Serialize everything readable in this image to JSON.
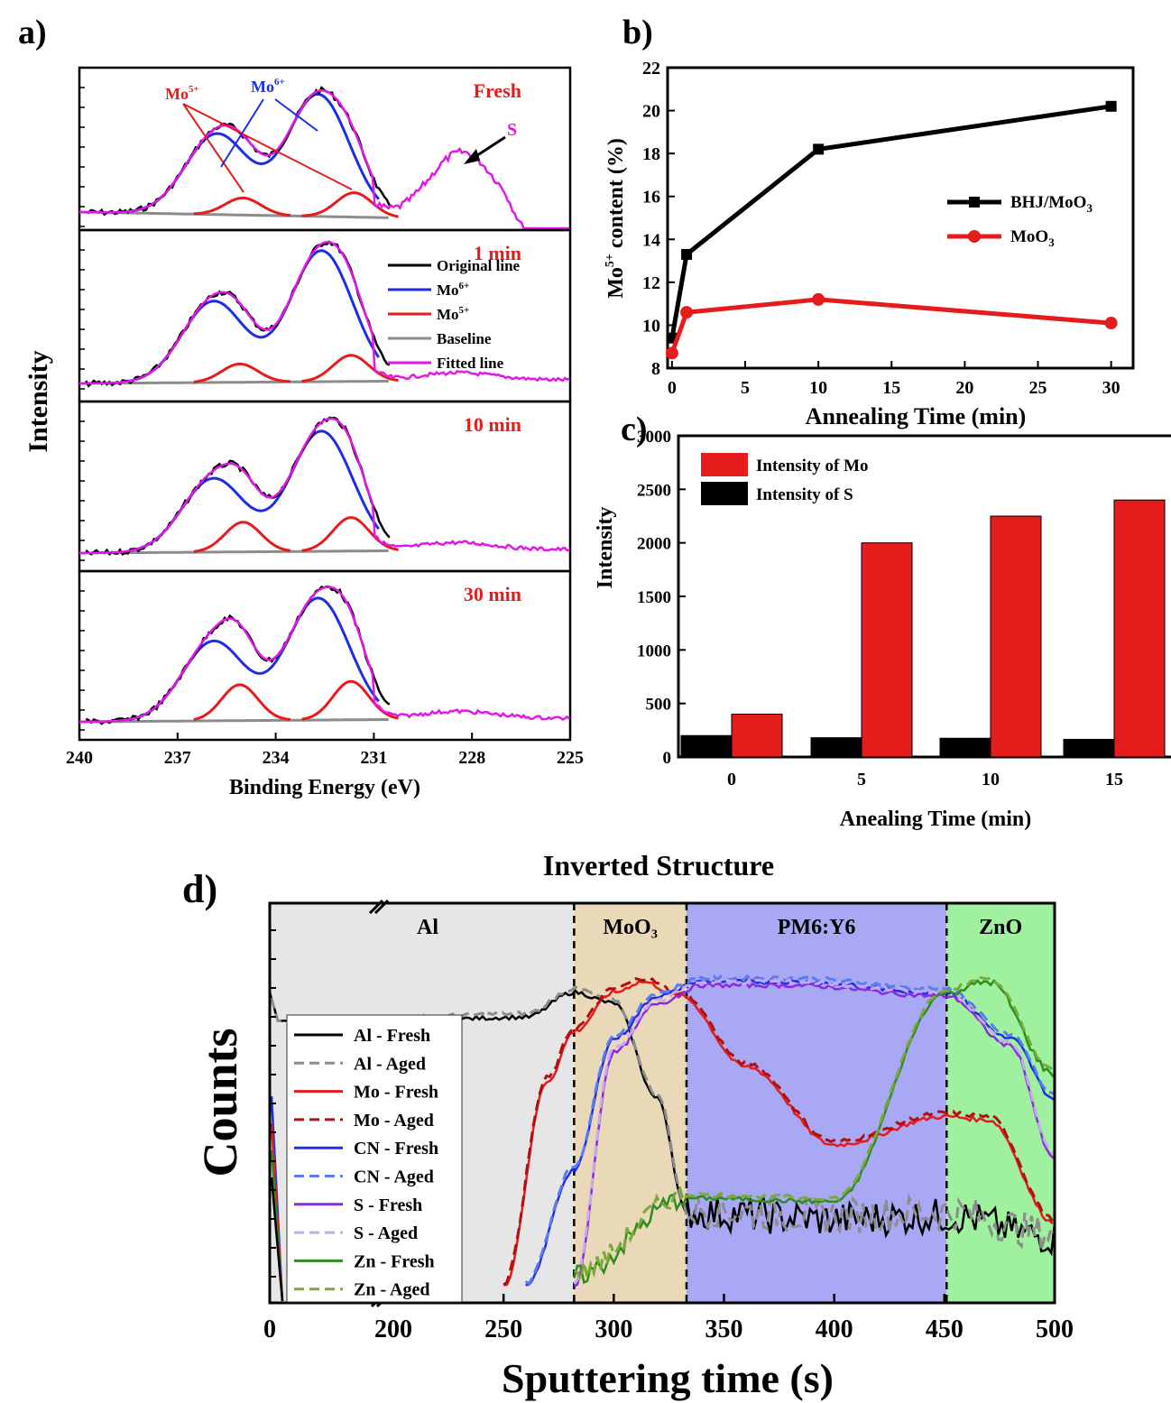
{
  "colors": {
    "black": "#000000",
    "red": "#e61b1b",
    "blue": "#1d2ee6",
    "gray": "#8c8c8c",
    "magenta": "#e317e8",
    "purple": "#8a2be2",
    "green": "#2e8b1f",
    "al_bg": "#e6e6e6",
    "moo3_bg": "#ead9b8",
    "pm6_bg": "#a8a8f4",
    "zno_bg": "#9ff09f"
  },
  "panel_a": {
    "label": "a)",
    "ylabel": "Intensity",
    "xlabel": "Binding Energy (eV)",
    "xticks": [
      "240",
      "237",
      "234",
      "231",
      "228",
      "225"
    ],
    "subpanels": [
      "Fresh",
      "1 min",
      "10 min",
      "30 min"
    ],
    "annotations": {
      "mo5": "Mo",
      "mo5_sup": "5+",
      "mo6": "Mo",
      "mo6_sup": "6+",
      "s": "S"
    },
    "legend": [
      {
        "label": "Original line",
        "color": "#000000"
      },
      {
        "label": "Mo",
        "sup": "6+",
        "color": "#1d2ee6"
      },
      {
        "label": "Mo",
        "sup": "5+",
        "color": "#e61b1b"
      },
      {
        "label": "Baseline",
        "color": "#8c8c8c"
      },
      {
        "label": "Fitted line",
        "color": "#e317e8"
      }
    ]
  },
  "panel_b": {
    "label": "b)",
    "ylabel_pre": "Mo",
    "ylabel_sup": "5+",
    "ylabel_post": " content (%)",
    "xlabel": "Annealing Time (min)",
    "xticks": [
      "0",
      "5",
      "10",
      "15",
      "20",
      "25",
      "30"
    ],
    "yticks": [
      "8",
      "10",
      "12",
      "14",
      "16",
      "18",
      "20",
      "22"
    ],
    "legend": [
      {
        "label": "BHJ/MoO",
        "sub": "3",
        "color": "#000000"
      },
      {
        "label": "MoO",
        "sub": "3",
        "color": "#e61b1b"
      }
    ]
  },
  "panel_c": {
    "label": "c)",
    "ylabel": "Intensity",
    "xlabel": "Anealing Time (min)",
    "xticks": [
      "0",
      "5",
      "10",
      "15"
    ],
    "yticks": [
      "0",
      "500",
      "1000",
      "1500",
      "2000",
      "2500",
      "3000"
    ],
    "legend": [
      {
        "label": "Intensity of Mo",
        "color": "#e61b1b"
      },
      {
        "label": "Intensity of S",
        "color": "#000000"
      }
    ]
  },
  "panel_d": {
    "label": "d)",
    "title": "Inverted Structure",
    "ylabel": "Counts",
    "xlabel": "Sputtering time (s)",
    "xticks": [
      "0",
      "200",
      "250",
      "300",
      "350",
      "400",
      "450",
      "500"
    ],
    "regions": [
      "Al",
      "MoO₃",
      "PM6:Y6",
      "ZnO"
    ],
    "legend": [
      {
        "label": "Al - Fresh",
        "color": "#000000",
        "dash": false
      },
      {
        "label": "Al - Aged",
        "color": "#8c8c8c",
        "dash": true
      },
      {
        "label": "Mo - Fresh",
        "color": "#e61b1b",
        "dash": false
      },
      {
        "label": "Mo - Aged",
        "color": "#b01010",
        "dash": true
      },
      {
        "label": "CN - Fresh",
        "color": "#1d2ee6",
        "dash": false
      },
      {
        "label": "CN - Aged",
        "color": "#5b7bf0",
        "dash": true
      },
      {
        "label": "S - Fresh",
        "color": "#8a2be2",
        "dash": false
      },
      {
        "label": "S - Aged",
        "color": "#c8a8ee",
        "dash": true
      },
      {
        "label": "Zn - Fresh",
        "color": "#2e8b1f",
        "dash": false
      },
      {
        "label": "Zn - Aged",
        "color": "#7aa83a",
        "dash": true
      }
    ]
  },
  "chart_data": [
    {
      "panel": "a",
      "type": "line",
      "xlabel": "Binding Energy (eV)",
      "ylabel": "Intensity",
      "xlim": [
        240,
        225
      ],
      "note_series": [
        "Original line",
        "Mo6+",
        "Mo5+",
        "Baseline",
        "Fitted line"
      ],
      "peaks": {
        "Fresh": {
          "mo6": [
            235.8,
            232.7
          ],
          "mo5": [
            235.0,
            231.6
          ],
          "s": 228.3
        },
        "1 min": {
          "mo6": [
            235.9,
            232.6
          ],
          "mo5": [
            235.1,
            231.7
          ]
        },
        "10 min": {
          "mo6": [
            235.9,
            232.6
          ],
          "mo5": [
            235.0,
            231.7
          ]
        },
        "30 min": {
          "mo6": [
            235.9,
            232.7
          ],
          "mo5": [
            235.1,
            231.7
          ]
        }
      }
    },
    {
      "panel": "b",
      "type": "line",
      "xlabel": "Annealing Time (min)",
      "xlim": [
        -0.3,
        31.5
      ],
      "ylim": [
        8,
        22
      ],
      "series": [
        {
          "name": "BHJ/MoO3",
          "x": [
            0,
            1,
            10,
            30
          ],
          "y": [
            9.4,
            13.3,
            18.2,
            20.2
          ]
        },
        {
          "name": "MoO3",
          "x": [
            0,
            1,
            10,
            30
          ],
          "y": [
            8.7,
            10.6,
            11.2,
            10.1
          ]
        }
      ]
    },
    {
      "panel": "c",
      "type": "bar",
      "xlabel": "Anealing Time (min)",
      "ylabel": "Intensity",
      "categories": [
        "0",
        "5",
        "10",
        "15"
      ],
      "ylim": [
        0,
        3000
      ],
      "series": [
        {
          "name": "Intensity of S",
          "values": [
            200,
            180,
            175,
            165
          ]
        },
        {
          "name": "Intensity of Mo",
          "values": [
            400,
            2000,
            2250,
            2400
          ]
        }
      ]
    },
    {
      "panel": "d",
      "type": "line",
      "title": "Inverted Structure",
      "xlabel": "Sputtering time (s)",
      "ylabel": "Counts",
      "x_axis_break": [
        0,
        200
      ],
      "regions": [
        {
          "name": "Al",
          "x": [
            0,
            282
          ]
        },
        {
          "name": "MoO₃",
          "x": [
            282,
            333
          ]
        },
        {
          "name": "PM6:Y6",
          "x": [
            333,
            451
          ]
        },
        {
          "name": "ZnO",
          "x": [
            451,
            500
          ]
        }
      ],
      "series": [
        {
          "name": "Al - Fresh",
          "x": [
            0,
            200,
            260,
            282,
            300,
            320,
            333,
            400,
            451,
            500
          ],
          "y": [
            0.85,
            0.77,
            0.78,
            0.85,
            0.82,
            0.55,
            0.23,
            0.21,
            0.22,
            0.16
          ]
        },
        {
          "name": "Mo - Fresh",
          "x": [
            250,
            270,
            282,
            300,
            313,
            330,
            360,
            400,
            451,
            470,
            500
          ],
          "y": [
            0.02,
            0.6,
            0.74,
            0.85,
            0.88,
            0.84,
            0.64,
            0.42,
            0.5,
            0.49,
            0.2
          ]
        },
        {
          "name": "CN - Fresh",
          "x": [
            260,
            282,
            300,
            320,
            340,
            380,
            451,
            480,
            500
          ],
          "y": [
            0.02,
            0.35,
            0.72,
            0.84,
            0.88,
            0.88,
            0.85,
            0.72,
            0.55
          ]
        },
        {
          "name": "S - Fresh",
          "x": [
            282,
            300,
            320,
            340,
            380,
            451,
            480,
            500
          ],
          "y": [
            0.02,
            0.68,
            0.82,
            0.87,
            0.87,
            0.84,
            0.7,
            0.38
          ]
        },
        {
          "name": "Zn - Fresh",
          "x": [
            282,
            333,
            400,
            451,
            470,
            500
          ],
          "y": [
            0.05,
            0.27,
            0.26,
            0.85,
            0.88,
            0.62
          ]
        }
      ]
    }
  ]
}
